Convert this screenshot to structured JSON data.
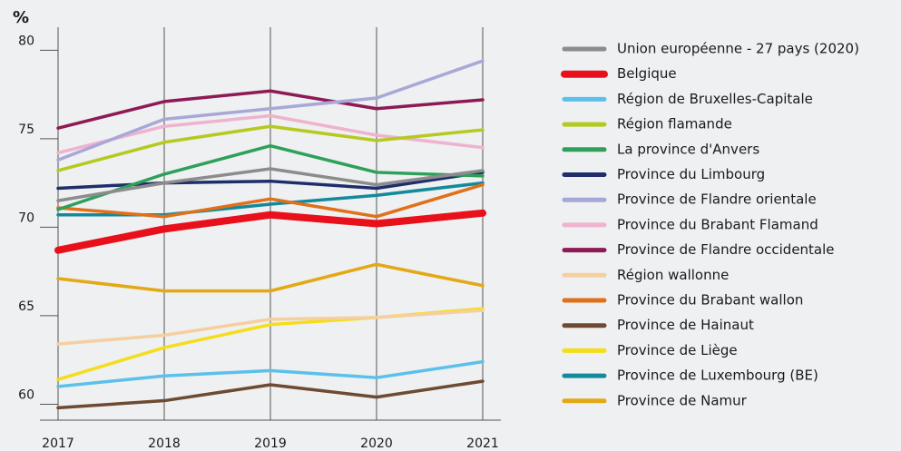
{
  "chart_data": {
    "type": "line",
    "y_label": "%",
    "x": [
      "2017",
      "2018",
      "2019",
      "2020",
      "2021"
    ],
    "ylim": [
      59.1,
      81.3
    ],
    "yticks": [
      60,
      65,
      70,
      75,
      80
    ],
    "grid": true,
    "series": [
      {
        "name": "Union européenne - 27 pays (2020)",
        "color": "#8c8c8c",
        "values": [
          71.5,
          72.5,
          73.3,
          72.4,
          73.2
        ]
      },
      {
        "name": "Belgique",
        "color": "#e8101a",
        "values": [
          68.7,
          69.9,
          70.7,
          70.2,
          70.8
        ]
      },
      {
        "name": "Région de Bruxelles-Capitale",
        "color": "#5bc0eb",
        "values": [
          61.0,
          61.6,
          61.9,
          61.5,
          62.4
        ]
      },
      {
        "name": "Région flamande",
        "color": "#b5c91f",
        "values": [
          73.2,
          74.8,
          75.7,
          74.9,
          75.5
        ]
      },
      {
        "name": "La province d'Anvers",
        "color": "#2ea05a",
        "values": [
          71.0,
          73.0,
          74.6,
          73.1,
          72.9
        ]
      },
      {
        "name": "Province du Limbourg",
        "color": "#1f2e6b",
        "values": [
          72.2,
          72.5,
          72.6,
          72.2,
          73.1
        ]
      },
      {
        "name": "Province de Flandre orientale",
        "color": "#a8a8d8",
        "values": [
          73.8,
          76.1,
          76.7,
          77.3,
          79.4
        ]
      },
      {
        "name": "Province du Brabant Flamand",
        "color": "#efb3cf",
        "values": [
          74.2,
          75.7,
          76.3,
          75.2,
          74.5
        ]
      },
      {
        "name": "Province de Flandre occidentale",
        "color": "#8e1a55",
        "values": [
          75.6,
          77.1,
          77.7,
          76.7,
          77.2
        ]
      },
      {
        "name": "Région wallonne",
        "color": "#f5cf9f",
        "values": [
          63.4,
          63.9,
          64.8,
          64.9,
          65.3
        ]
      },
      {
        "name": "Province du Brabant wallon",
        "color": "#e0701a",
        "values": [
          71.1,
          70.6,
          71.6,
          70.6,
          72.4
        ]
      },
      {
        "name": "Province de Hainaut",
        "color": "#6e4a32",
        "values": [
          59.8,
          60.2,
          61.1,
          60.4,
          61.3
        ]
      },
      {
        "name": "Province de Liège",
        "color": "#f5dd1a",
        "values": [
          61.4,
          63.2,
          64.5,
          64.9,
          65.4
        ]
      },
      {
        "name": "Province de Luxembourg (BE)",
        "color": "#138a9c",
        "values": [
          70.7,
          70.7,
          71.3,
          71.8,
          72.5
        ]
      },
      {
        "name": "Province de Namur",
        "color": "#e3a815",
        "values": [
          67.1,
          66.4,
          66.4,
          67.9,
          66.7
        ]
      }
    ]
  }
}
